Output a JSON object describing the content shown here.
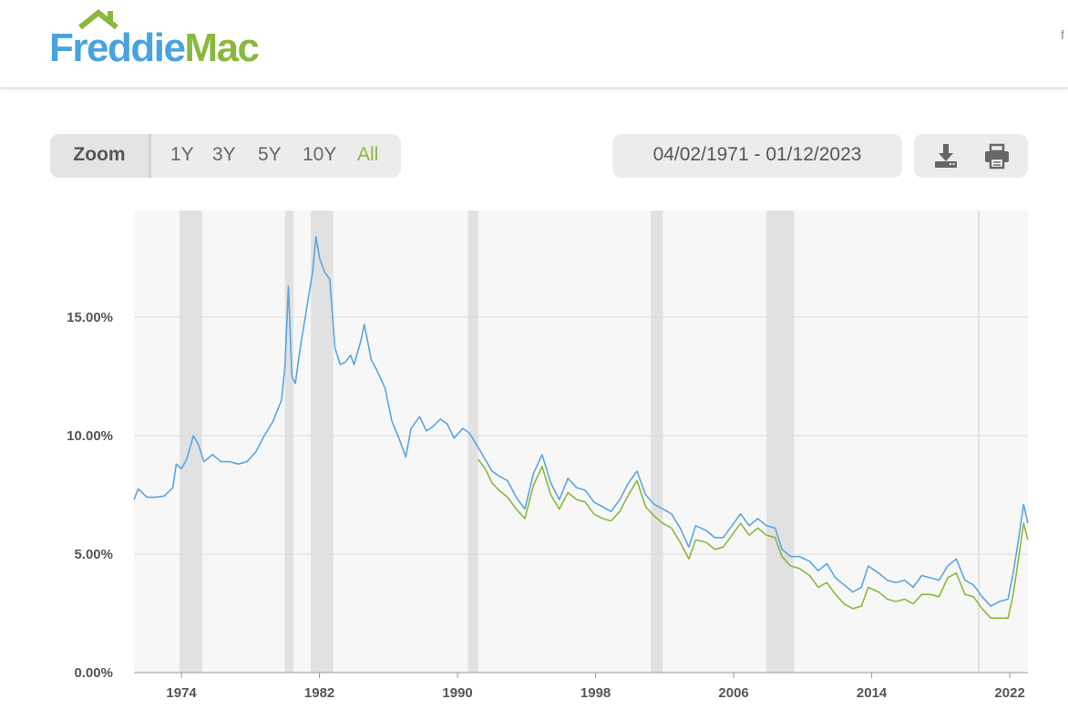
{
  "header": {
    "logo_part1": "Freddie",
    "logo_part2": "Mac",
    "edge_glyph": "f"
  },
  "toolbar": {
    "zoom_label": "Zoom",
    "zoom_buttons": [
      "1Y",
      "3Y",
      "5Y",
      "10Y",
      "All"
    ],
    "active_zoom": "All",
    "date_range": "04/02/1971 - 01/12/2023",
    "download_icon": "download-icon",
    "print_icon": "printer-icon"
  },
  "colors": {
    "blue": "#5aa6e0",
    "green": "#8ab83e",
    "recession": "#e1e1e1",
    "plot_bg": "#f7f7f7",
    "grid": "#dcdcdc"
  },
  "chart_data": {
    "type": "line",
    "title": "",
    "xlabel": "",
    "ylabel": "",
    "xlim": [
      1971.25,
      2023.05
    ],
    "ylim": [
      0,
      19.5
    ],
    "y_ticks": [
      0,
      5,
      10,
      15
    ],
    "y_tick_labels": [
      "0.00%",
      "5.00%",
      "10.00%",
      "15.00%"
    ],
    "x_ticks": [
      1974,
      1982,
      1990,
      1998,
      2006,
      2014,
      2022
    ],
    "x_tick_labels": [
      "1974",
      "1982",
      "1990",
      "1998",
      "2006",
      "2014",
      "2022"
    ],
    "grid": true,
    "recessions": [
      [
        1973.9,
        1975.2
      ],
      [
        1980.0,
        1980.5
      ],
      [
        1981.5,
        1982.8
      ],
      [
        1990.6,
        1991.2
      ],
      [
        2001.2,
        2001.9
      ],
      [
        2007.9,
        2009.5
      ]
    ],
    "reference_lines_x": [
      2020.2
    ],
    "series": [
      {
        "color": "#5aa6e0",
        "points": [
          [
            1971.25,
            7.3
          ],
          [
            1971.5,
            7.75
          ],
          [
            1972.0,
            7.4
          ],
          [
            1972.5,
            7.4
          ],
          [
            1973.0,
            7.45
          ],
          [
            1973.5,
            7.8
          ],
          [
            1973.7,
            8.8
          ],
          [
            1974.0,
            8.6
          ],
          [
            1974.3,
            9.0
          ],
          [
            1974.7,
            10.0
          ],
          [
            1975.0,
            9.6
          ],
          [
            1975.3,
            8.9
          ],
          [
            1975.8,
            9.2
          ],
          [
            1976.3,
            8.9
          ],
          [
            1976.8,
            8.9
          ],
          [
            1977.3,
            8.8
          ],
          [
            1977.8,
            8.9
          ],
          [
            1978.3,
            9.3
          ],
          [
            1978.8,
            10.0
          ],
          [
            1979.3,
            10.6
          ],
          [
            1979.8,
            11.5
          ],
          [
            1980.0,
            12.9
          ],
          [
            1980.2,
            16.3
          ],
          [
            1980.4,
            12.5
          ],
          [
            1980.6,
            12.2
          ],
          [
            1980.9,
            13.8
          ],
          [
            1981.2,
            15.1
          ],
          [
            1981.6,
            16.9
          ],
          [
            1981.8,
            18.4
          ],
          [
            1982.0,
            17.5
          ],
          [
            1982.3,
            16.9
          ],
          [
            1982.6,
            16.6
          ],
          [
            1982.9,
            13.7
          ],
          [
            1983.2,
            13.0
          ],
          [
            1983.5,
            13.1
          ],
          [
            1983.8,
            13.4
          ],
          [
            1984.0,
            13.0
          ],
          [
            1984.4,
            14.0
          ],
          [
            1984.6,
            14.7
          ],
          [
            1985.0,
            13.2
          ],
          [
            1985.3,
            12.8
          ],
          [
            1985.8,
            12.0
          ],
          [
            1986.2,
            10.6
          ],
          [
            1986.6,
            9.9
          ],
          [
            1987.0,
            9.1
          ],
          [
            1987.3,
            10.3
          ],
          [
            1987.8,
            10.8
          ],
          [
            1988.2,
            10.2
          ],
          [
            1988.6,
            10.4
          ],
          [
            1989.0,
            10.7
          ],
          [
            1989.4,
            10.5
          ],
          [
            1989.8,
            9.9
          ],
          [
            1990.3,
            10.3
          ],
          [
            1990.7,
            10.1
          ],
          [
            1991.2,
            9.5
          ],
          [
            1991.6,
            9.0
          ],
          [
            1992.0,
            8.5
          ],
          [
            1992.4,
            8.3
          ],
          [
            1992.9,
            8.1
          ],
          [
            1993.4,
            7.4
          ],
          [
            1993.9,
            6.9
          ],
          [
            1994.4,
            8.4
          ],
          [
            1994.9,
            9.2
          ],
          [
            1995.4,
            8.0
          ],
          [
            1995.9,
            7.3
          ],
          [
            1996.4,
            8.2
          ],
          [
            1996.9,
            7.8
          ],
          [
            1997.4,
            7.7
          ],
          [
            1997.9,
            7.2
          ],
          [
            1998.4,
            7.0
          ],
          [
            1998.9,
            6.8
          ],
          [
            1999.4,
            7.3
          ],
          [
            1999.9,
            8.0
          ],
          [
            2000.4,
            8.5
          ],
          [
            2000.9,
            7.5
          ],
          [
            2001.4,
            7.1
          ],
          [
            2001.9,
            6.9
          ],
          [
            2002.4,
            6.7
          ],
          [
            2002.9,
            6.1
          ],
          [
            2003.4,
            5.3
          ],
          [
            2003.8,
            6.2
          ],
          [
            2004.4,
            6.0
          ],
          [
            2004.9,
            5.7
          ],
          [
            2005.4,
            5.7
          ],
          [
            2005.9,
            6.2
          ],
          [
            2006.4,
            6.7
          ],
          [
            2006.9,
            6.2
          ],
          [
            2007.4,
            6.5
          ],
          [
            2007.9,
            6.2
          ],
          [
            2008.4,
            6.1
          ],
          [
            2008.8,
            5.2
          ],
          [
            2009.3,
            4.9
          ],
          [
            2009.8,
            4.9
          ],
          [
            2010.4,
            4.7
          ],
          [
            2010.9,
            4.3
          ],
          [
            2011.4,
            4.6
          ],
          [
            2011.9,
            4.0
          ],
          [
            2012.4,
            3.7
          ],
          [
            2012.9,
            3.4
          ],
          [
            2013.4,
            3.6
          ],
          [
            2013.8,
            4.5
          ],
          [
            2014.4,
            4.2
          ],
          [
            2014.9,
            3.9
          ],
          [
            2015.4,
            3.8
          ],
          [
            2015.9,
            3.9
          ],
          [
            2016.4,
            3.6
          ],
          [
            2016.9,
            4.1
          ],
          [
            2017.4,
            4.0
          ],
          [
            2017.9,
            3.9
          ],
          [
            2018.4,
            4.5
          ],
          [
            2018.9,
            4.8
          ],
          [
            2019.4,
            3.9
          ],
          [
            2019.9,
            3.7
          ],
          [
            2020.4,
            3.2
          ],
          [
            2020.9,
            2.8
          ],
          [
            2021.4,
            3.0
          ],
          [
            2021.9,
            3.1
          ],
          [
            2022.2,
            4.2
          ],
          [
            2022.5,
            5.6
          ],
          [
            2022.8,
            7.1
          ],
          [
            2023.05,
            6.3
          ]
        ]
      },
      {
        "color": "#8ab83e",
        "points": [
          [
            1991.2,
            9.0
          ],
          [
            1991.6,
            8.6
          ],
          [
            1992.0,
            8.0
          ],
          [
            1992.4,
            7.7
          ],
          [
            1992.9,
            7.4
          ],
          [
            1993.4,
            6.9
          ],
          [
            1993.9,
            6.5
          ],
          [
            1994.4,
            7.9
          ],
          [
            1994.9,
            8.7
          ],
          [
            1995.4,
            7.5
          ],
          [
            1995.9,
            6.9
          ],
          [
            1996.4,
            7.6
          ],
          [
            1996.9,
            7.3
          ],
          [
            1997.4,
            7.2
          ],
          [
            1997.9,
            6.7
          ],
          [
            1998.4,
            6.5
          ],
          [
            1998.9,
            6.4
          ],
          [
            1999.4,
            6.8
          ],
          [
            1999.9,
            7.5
          ],
          [
            2000.4,
            8.1
          ],
          [
            2000.9,
            7.0
          ],
          [
            2001.4,
            6.6
          ],
          [
            2001.9,
            6.3
          ],
          [
            2002.4,
            6.1
          ],
          [
            2002.9,
            5.5
          ],
          [
            2003.4,
            4.8
          ],
          [
            2003.8,
            5.6
          ],
          [
            2004.4,
            5.5
          ],
          [
            2004.9,
            5.2
          ],
          [
            2005.4,
            5.3
          ],
          [
            2005.9,
            5.8
          ],
          [
            2006.4,
            6.3
          ],
          [
            2006.9,
            5.8
          ],
          [
            2007.4,
            6.1
          ],
          [
            2007.9,
            5.8
          ],
          [
            2008.4,
            5.7
          ],
          [
            2008.8,
            4.9
          ],
          [
            2009.3,
            4.5
          ],
          [
            2009.8,
            4.4
          ],
          [
            2010.4,
            4.1
          ],
          [
            2010.9,
            3.6
          ],
          [
            2011.4,
            3.8
          ],
          [
            2011.9,
            3.3
          ],
          [
            2012.4,
            2.9
          ],
          [
            2012.9,
            2.7
          ],
          [
            2013.4,
            2.8
          ],
          [
            2013.8,
            3.6
          ],
          [
            2014.4,
            3.4
          ],
          [
            2014.9,
            3.1
          ],
          [
            2015.4,
            3.0
          ],
          [
            2015.9,
            3.1
          ],
          [
            2016.4,
            2.9
          ],
          [
            2016.9,
            3.3
          ],
          [
            2017.4,
            3.3
          ],
          [
            2017.9,
            3.2
          ],
          [
            2018.4,
            4.0
          ],
          [
            2018.9,
            4.2
          ],
          [
            2019.4,
            3.3
          ],
          [
            2019.9,
            3.2
          ],
          [
            2020.4,
            2.7
          ],
          [
            2020.9,
            2.3
          ],
          [
            2021.4,
            2.3
          ],
          [
            2021.9,
            2.3
          ],
          [
            2022.2,
            3.3
          ],
          [
            2022.5,
            4.8
          ],
          [
            2022.8,
            6.3
          ],
          [
            2023.05,
            5.6
          ]
        ]
      }
    ]
  }
}
